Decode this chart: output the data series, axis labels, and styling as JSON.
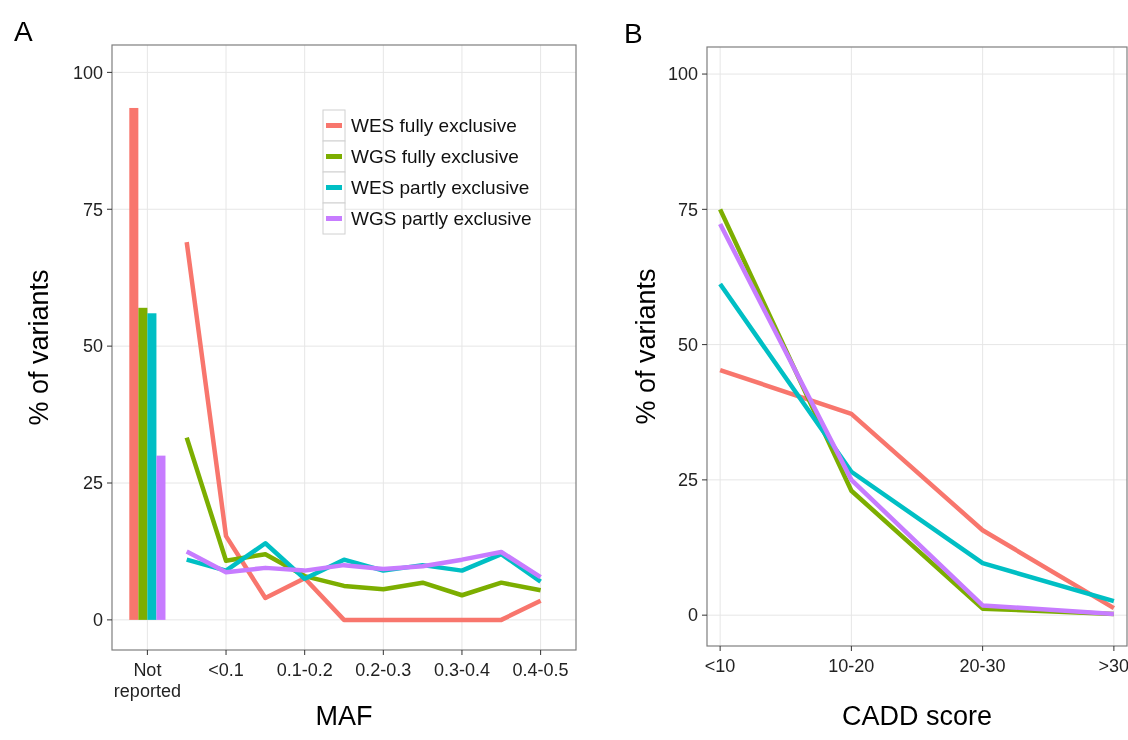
{
  "chart_data": [
    {
      "type": "line",
      "title": "A",
      "xlabel": "MAF",
      "ylabel": "% of variants",
      "categories": [
        "Not\nreported",
        null,
        "<0.1",
        null,
        "0.1-0.2",
        null,
        "0.2-0.3",
        null,
        "0.3-0.4",
        null,
        "0.4-0.5"
      ],
      "ylim": [
        -5.5,
        105
      ],
      "yticks": [
        0,
        25,
        50,
        75,
        100
      ],
      "grid": true,
      "legend": "top right",
      "series": [
        {
          "type": "bar",
          "color": "#f8766d",
          "values": [
            93.5,
            null,
            null,
            null,
            null,
            null,
            null,
            null,
            null,
            null,
            null
          ]
        },
        {
          "type": "bar",
          "color": "#7cae00",
          "values": [
            57,
            null,
            null,
            null,
            null,
            null,
            null,
            null,
            null,
            null,
            null
          ]
        },
        {
          "type": "bar",
          "color": "#00bfc4",
          "values": [
            56,
            null,
            null,
            null,
            null,
            null,
            null,
            null,
            null,
            null,
            null
          ]
        },
        {
          "type": "bar",
          "color": "#c77cff",
          "values": [
            30,
            null,
            null,
            null,
            null,
            null,
            null,
            null,
            null,
            null,
            null
          ]
        },
        {
          "name": "WES fully exclusive",
          "color": "#f8766d",
          "values": [
            null,
            69,
            15.3,
            4,
            7.6,
            0,
            0,
            0,
            0,
            0,
            3.5
          ]
        },
        {
          "name": "WGS fully exclusive",
          "color": "#7cae00",
          "values": [
            null,
            33.3,
            10.8,
            12,
            8,
            6.2,
            5.6,
            6.8,
            4.5,
            6.8,
            5.4
          ]
        },
        {
          "name": "WES partly exclusive",
          "color": "#00bfc4",
          "values": [
            null,
            11,
            9,
            14,
            7.5,
            11,
            9,
            10,
            9,
            12,
            7
          ]
        },
        {
          "name": "WGS partly exclusive",
          "color": "#c77cff",
          "values": [
            null,
            12.5,
            8.7,
            9.5,
            9,
            10,
            9.3,
            9.8,
            11,
            12.4,
            7.8
          ]
        }
      ]
    },
    {
      "type": "line",
      "title": "B",
      "xlabel": "CADD score",
      "ylabel": "% of variants",
      "categories": [
        "<10",
        "10-20",
        "20-30",
        ">30"
      ],
      "ylim": [
        -5.7,
        105
      ],
      "yticks": [
        0,
        25,
        50,
        75,
        100
      ],
      "grid": true,
      "series": [
        {
          "color": "#f8766d",
          "values": [
            45.3,
            37.2,
            15.7,
            1.3
          ]
        },
        {
          "color": "#7cae00",
          "values": [
            75,
            23,
            1.2,
            0.2
          ]
        },
        {
          "color": "#00bfc4",
          "values": [
            61.2,
            26.5,
            9.6,
            2.6
          ]
        },
        {
          "color": "#c77cff",
          "values": [
            72.3,
            25,
            1.8,
            0.2
          ]
        }
      ]
    }
  ]
}
